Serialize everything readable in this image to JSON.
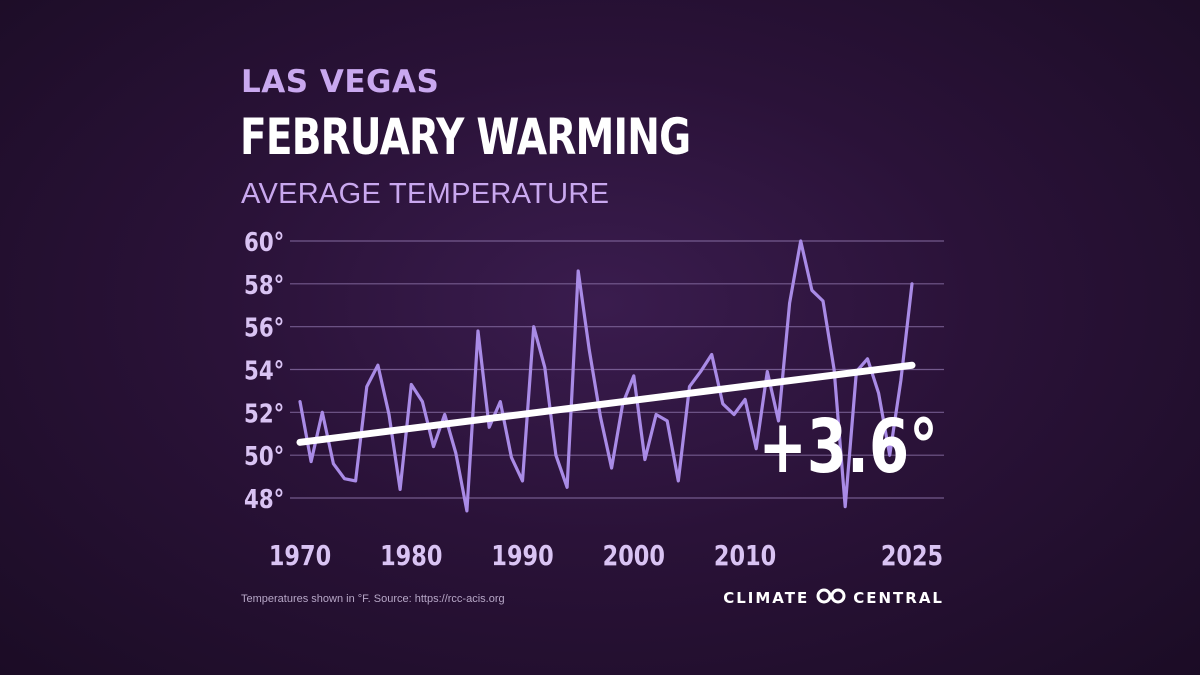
{
  "header": {
    "city": "LAS VEGAS",
    "title": "FEBRUARY WARMING",
    "subtitle": "AVERAGE TEMPERATURE"
  },
  "footer": {
    "note": "Temperatures shown in °F. Source: https://rcc-acis.org",
    "logo_left": "CLIMATE",
    "logo_right": "CENTRAL"
  },
  "colors": {
    "line": "#a98be6",
    "trend": "#ffffff",
    "grid": "#8b72a8",
    "axis_label": "#d9c3f3",
    "accent": "#c9a8ef"
  },
  "chart_data": {
    "type": "line",
    "title": "FEBRUARY WARMING",
    "subtitle": "AVERAGE TEMPERATURE",
    "xlabel": "",
    "ylabel": "",
    "xlim": [
      1970,
      2025
    ],
    "ylim": [
      47,
      61
    ],
    "x_ticks": [
      1970,
      1980,
      1990,
      2000,
      2010,
      2025
    ],
    "x_tick_labels": [
      "1970",
      "1980",
      "1990",
      "2000",
      "2010",
      "2025"
    ],
    "y_ticks": [
      48,
      50,
      52,
      54,
      56,
      58,
      60
    ],
    "y_tick_labels": [
      "48°",
      "50°",
      "52°",
      "54°",
      "56°",
      "58°",
      "60°"
    ],
    "grid": true,
    "annotation": "+3.6°",
    "series": [
      {
        "x": [
          1970,
          1971,
          1972,
          1973,
          1974,
          1975,
          1976,
          1977,
          1978,
          1979,
          1980,
          1981,
          1982,
          1983,
          1984,
          1985,
          1986,
          1987,
          1988,
          1989,
          1990,
          1991,
          1992,
          1993,
          1994,
          1995,
          1996,
          1997,
          1998,
          1999,
          2000,
          2001,
          2002,
          2003,
          2004,
          2005,
          2006,
          2007,
          2008,
          2009,
          2010,
          2011,
          2012,
          2013,
          2014,
          2015,
          2016,
          2017,
          2018,
          2019,
          2020,
          2021,
          2022,
          2023,
          2024,
          2025
        ],
        "y": [
          52.5,
          49.7,
          52.0,
          49.6,
          48.9,
          48.8,
          53.2,
          54.2,
          51.9,
          48.4,
          53.3,
          52.5,
          50.4,
          51.9,
          50.1,
          47.4,
          55.8,
          51.3,
          52.5,
          49.9,
          48.8,
          56.0,
          54.1,
          50.0,
          48.5,
          58.6,
          54.9,
          51.8,
          49.4,
          52.4,
          53.7,
          49.8,
          51.9,
          51.6,
          48.8,
          53.2,
          53.9,
          54.7,
          52.4,
          51.9,
          52.6,
          50.3,
          53.9,
          51.6,
          57.1,
          60.0,
          57.7,
          57.2,
          54.0,
          47.6,
          53.9,
          54.5,
          52.9,
          50.0,
          53.5,
          58.0
        ]
      },
      {
        "x": [
          1970,
          2025
        ],
        "y": [
          50.6,
          54.2
        ]
      }
    ]
  }
}
